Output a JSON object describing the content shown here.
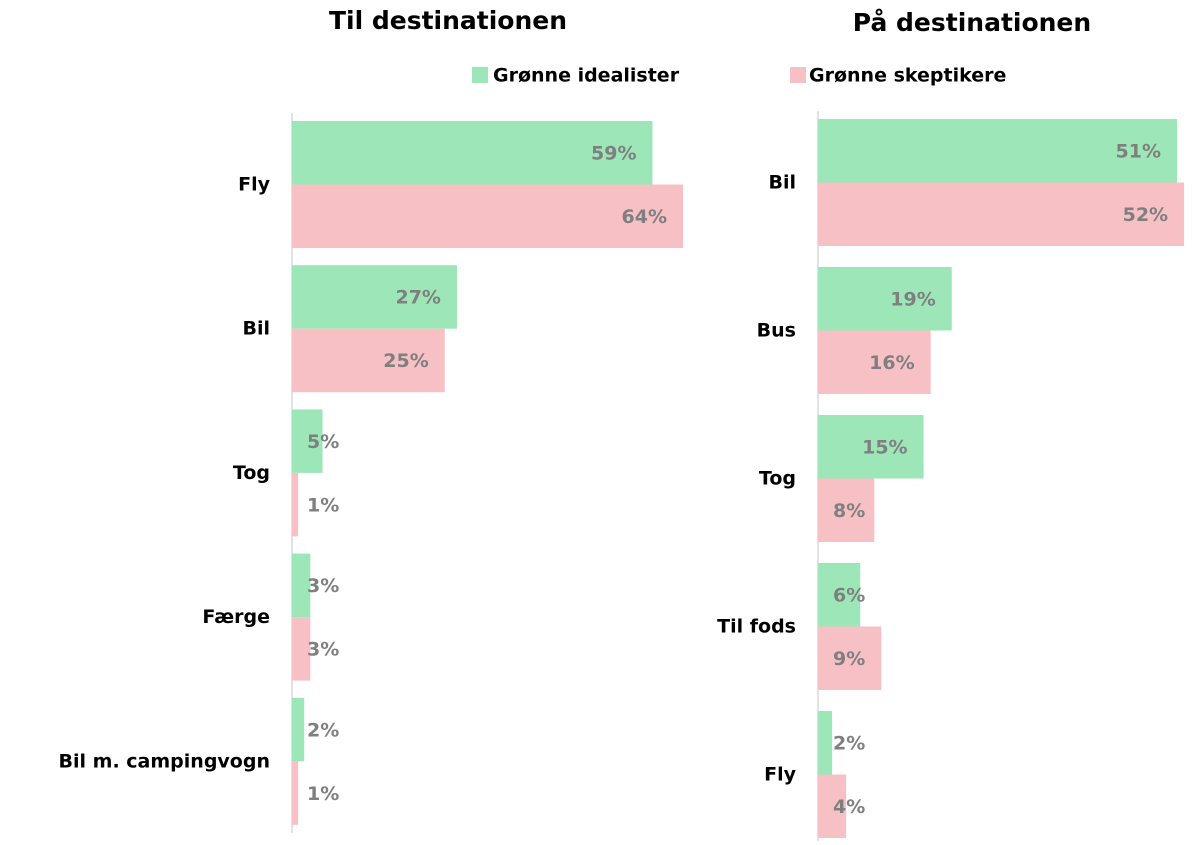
{
  "chart_data": [
    {
      "type": "bar",
      "orientation": "horizontal",
      "title": "Til destinationen",
      "categories": [
        "Fly",
        "Bil",
        "Tog",
        "Færge",
        "Bil m. campingvogn"
      ],
      "series": [
        {
          "name": "Grønne idealister",
          "color": "#9de6b8",
          "values": [
            59,
            27,
            5,
            3,
            2
          ],
          "value_labels": [
            "59%",
            "27%",
            "5%",
            "3%",
            "2%"
          ]
        },
        {
          "name": "Grønne skeptikere",
          "color": "#f7c0c5",
          "values": [
            64,
            25,
            1,
            3,
            1
          ],
          "value_labels": [
            "64%",
            "25%",
            "1%",
            "3%",
            "1%"
          ]
        }
      ]
    },
    {
      "type": "bar",
      "orientation": "horizontal",
      "title": "På destinationen",
      "categories": [
        "Bil",
        "Bus",
        "Tog",
        "Til fods",
        "Fly"
      ],
      "series": [
        {
          "color": "#9de6b8",
          "values": [
            51,
            19,
            15,
            6,
            2
          ],
          "value_labels": [
            "51%",
            "19%",
            "15%",
            "6%",
            "2%"
          ]
        },
        {
          "color": "#f7c0c5",
          "values": [
            52,
            16,
            8,
            9,
            4
          ],
          "value_labels": [
            "52%",
            "16%",
            "8%",
            "9%",
            "4%"
          ]
        }
      ]
    }
  ]
}
